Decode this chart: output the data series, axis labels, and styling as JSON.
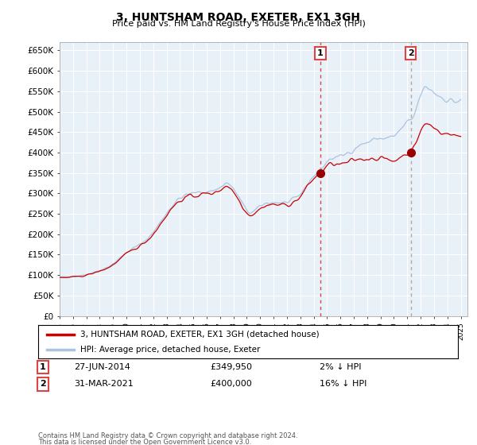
{
  "title": "3, HUNTSHAM ROAD, EXETER, EX1 3GH",
  "subtitle": "Price paid vs. HM Land Registry's House Price Index (HPI)",
  "legend_line1": "3, HUNTSHAM ROAD, EXETER, EX1 3GH (detached house)",
  "legend_line2": "HPI: Average price, detached house, Exeter",
  "annotation1_date": "27-JUN-2014",
  "annotation1_price": "£349,950",
  "annotation1_hpi": "2% ↓ HPI",
  "annotation1_year": 2014.5,
  "annotation2_date": "31-MAR-2021",
  "annotation2_price": "£400,000",
  "annotation2_hpi": "16% ↓ HPI",
  "annotation2_year": 2021.25,
  "sale1_value": 349950,
  "sale2_value": 400000,
  "footer1": "Contains HM Land Registry data © Crown copyright and database right 2024.",
  "footer2": "This data is licensed under the Open Government Licence v3.0.",
  "hpi_color": "#aac4e0",
  "price_color": "#cc0000",
  "sale_marker_color": "#990000",
  "vline1_color": "#dd4444",
  "vline2_color": "#aaaaaa",
  "background_color": "#ffffff",
  "plot_bg_color": "#e8f0f8",
  "grid_color": "#ffffff",
  "ylim": [
    0,
    670000
  ],
  "yticks": [
    0,
    50000,
    100000,
    150000,
    200000,
    250000,
    300000,
    350000,
    400000,
    450000,
    500000,
    550000,
    600000,
    650000
  ],
  "ytick_labels": [
    "£0",
    "£50K",
    "£100K",
    "£150K",
    "£200K",
    "£250K",
    "£300K",
    "£350K",
    "£400K",
    "£450K",
    "£500K",
    "£550K",
    "£600K",
    "£650K"
  ]
}
